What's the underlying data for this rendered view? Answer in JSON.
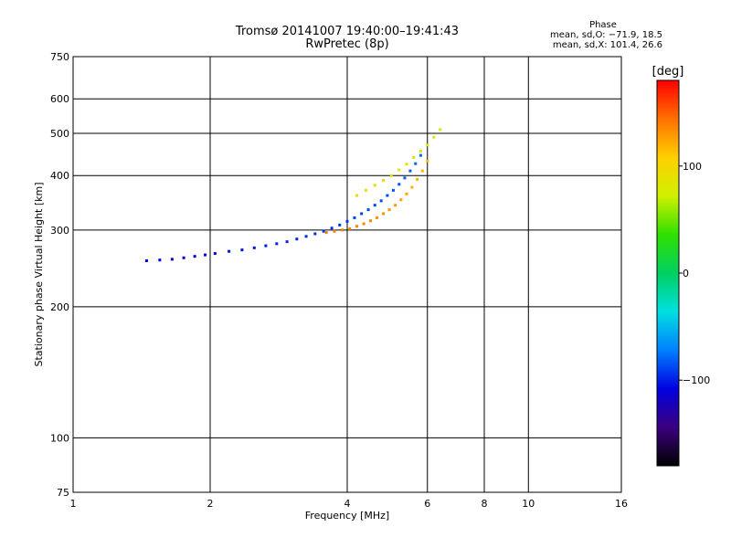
{
  "chart_data": {
    "type": "scatter",
    "title": "Tromsø 20141007 19:40:00–19:41:43",
    "subtitle": "RwPretec (8p)",
    "xlabel": "Frequency [MHz]",
    "ylabel": "Stationary phase Virtual Height [km]",
    "x_scale": "log",
    "y_scale": "log",
    "xlim": [
      1,
      16
    ],
    "ylim": [
      75,
      750
    ],
    "grid": true,
    "x_ticks": [
      1,
      2,
      4,
      6,
      8,
      10,
      16
    ],
    "x_tick_labels": [
      "1",
      "2",
      "4",
      "6",
      "8",
      "10",
      "16"
    ],
    "x_grid": [
      2,
      4,
      6,
      8,
      10
    ],
    "y_ticks": [
      75,
      100,
      200,
      300,
      400,
      500,
      600,
      750
    ],
    "y_tick_labels": [
      "75",
      "100",
      "200",
      "300",
      "400",
      "500",
      "600",
      "750"
    ],
    "y_grid": [
      100,
      200,
      300,
      400,
      500,
      600
    ],
    "stats_title": "Phase",
    "stats_lines": [
      "mean, sd,O: −71.9, 18.5",
      "mean, sd,X: 101.4, 26.6"
    ],
    "colorbar": {
      "label": "[deg]",
      "range": [
        -180,
        180
      ],
      "ticks": [
        100,
        0,
        -100
      ],
      "tick_labels": [
        "100",
        "0",
        "−100"
      ],
      "colors": [
        "#000000",
        "#3b0080",
        "#0000e0",
        "#0080ff",
        "#00e0e0",
        "#00d060",
        "#30e000",
        "#d0f000",
        "#ffd000",
        "#ff7000",
        "#ff0000"
      ]
    },
    "series": [
      {
        "x": [
          1.45,
          1.55,
          1.65,
          1.75,
          1.85,
          1.95,
          2.05,
          2.2,
          2.35,
          2.5,
          2.65,
          2.8,
          2.95,
          3.1,
          3.25,
          3.4,
          3.55,
          3.7,
          3.85,
          4.0,
          4.15,
          4.3,
          4.45,
          4.6,
          4.75,
          4.9,
          5.05,
          5.2,
          5.35,
          5.5,
          5.65,
          5.8
        ],
        "y": [
          255,
          256,
          257,
          259,
          261,
          263,
          265,
          268,
          270,
          273,
          276,
          279,
          282,
          286,
          290,
          294,
          298,
          303,
          308,
          314,
          320,
          327,
          334,
          342,
          350,
          360,
          370,
          382,
          395,
          410,
          426,
          445
        ],
        "phase": [
          -110,
          -110,
          -110,
          -108,
          -108,
          -106,
          -106,
          -104,
          -104,
          -102,
          -100,
          -100,
          -98,
          -98,
          -96,
          -96,
          -94,
          -94,
          -92,
          -92,
          -90,
          -90,
          -88,
          -88,
          -86,
          -86,
          -84,
          -84,
          -82,
          -82,
          -80,
          -80
        ]
      },
      {
        "x": [
          3.6,
          3.75,
          3.9,
          4.05,
          4.2,
          4.35,
          4.5,
          4.65,
          4.8,
          4.95,
          5.1,
          5.25,
          5.4,
          5.55,
          5.7,
          5.85,
          6.0
        ],
        "y": [
          296,
          298,
          300,
          302,
          306,
          310,
          315,
          320,
          327,
          334,
          342,
          352,
          363,
          376,
          392,
          410,
          432
        ],
        "phase": [
          140,
          140,
          138,
          138,
          136,
          136,
          134,
          132,
          132,
          130,
          128,
          126,
          124,
          122,
          120,
          118,
          116
        ]
      },
      {
        "x": [
          4.2,
          4.4,
          4.6,
          4.8,
          5.0,
          5.2,
          5.4,
          5.6,
          5.8,
          6.0,
          6.2,
          6.4
        ],
        "y": [
          360,
          370,
          380,
          390,
          400,
          412,
          425,
          440,
          455,
          470,
          490,
          510
        ],
        "phase": [
          100,
          100,
          95,
          95,
          90,
          90,
          85,
          85,
          80,
          80,
          75,
          75
        ]
      }
    ]
  }
}
